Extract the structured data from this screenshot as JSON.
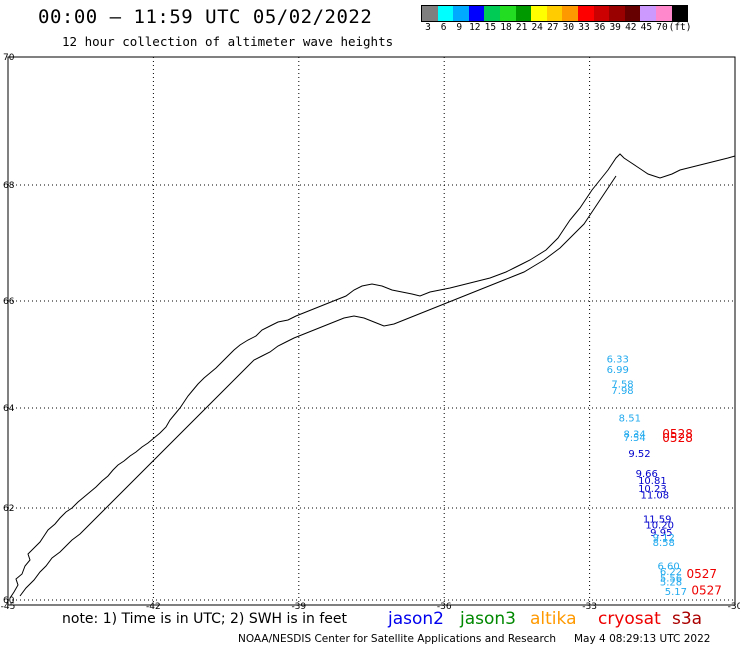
{
  "header": {
    "title": "00:00 – 11:59 UTC 05/02/2022",
    "subtitle": "12 hour collection of altimeter wave heights"
  },
  "colorbar": {
    "swatches": [
      "#7f7f7f",
      "#00ffff",
      "#00aaff",
      "#0000ff",
      "#00cc55",
      "#22dd22",
      "#009900",
      "#ffff00",
      "#ffcc00",
      "#ff9900",
      "#ff0000",
      "#cc0000",
      "#990000",
      "#660000",
      "#cc99ff",
      "#ff88cc",
      "#000000"
    ],
    "labels": [
      "3",
      "6",
      "9",
      "12",
      "15",
      "18",
      "21",
      "24",
      "27",
      "30",
      "33",
      "36",
      "39",
      "42",
      "45",
      "70",
      "(ft)"
    ]
  },
  "map": {
    "lon_ticks": [
      "-45",
      "-42",
      "-39",
      "-36",
      "-33",
      "-30"
    ],
    "lat_ticks": [
      "70",
      "68",
      "66",
      "64",
      "62",
      "60"
    ],
    "obs": [
      {
        "t": "6.33",
        "c": "#22aaee",
        "lon": -32.65,
        "lat": 64.85
      },
      {
        "t": "6.99",
        "c": "#22aaee",
        "lon": -32.65,
        "lat": 64.65
      },
      {
        "t": "7.58",
        "c": "#22aaee",
        "lon": -32.55,
        "lat": 64.38
      },
      {
        "t": "7.98",
        "c": "#22aaee",
        "lon": -32.55,
        "lat": 64.26
      },
      {
        "t": "8.51",
        "c": "#22aaee",
        "lon": -32.4,
        "lat": 63.73
      },
      {
        "t": "8.34",
        "c": "#22aaee",
        "lon": -32.3,
        "lat": 63.41
      },
      {
        "t": "7.54",
        "c": "#22aaee",
        "lon": -32.3,
        "lat": 63.34
      },
      {
        "t": "9.52",
        "c": "#0000cc",
        "lon": -32.2,
        "lat": 63.02
      },
      {
        "t": "9.66",
        "c": "#0000cc",
        "lon": -32.05,
        "lat": 62.62
      },
      {
        "t": "10.81",
        "c": "#0000cc",
        "lon": -32.0,
        "lat": 62.48
      },
      {
        "t": "10.23",
        "c": "#0000cc",
        "lon": -32.0,
        "lat": 62.32
      },
      {
        "t": "11.08",
        "c": "#0000cc",
        "lon": -31.95,
        "lat": 62.19
      },
      {
        "t": "11.59",
        "c": "#0000cc",
        "lon": -31.9,
        "lat": 61.68
      },
      {
        "t": "10.20",
        "c": "#0000cc",
        "lon": -31.85,
        "lat": 61.55
      },
      {
        "t": "9.95",
        "c": "#0000cc",
        "lon": -31.75,
        "lat": 61.39
      },
      {
        "t": "9.12",
        "c": "#22aaee",
        "lon": -31.7,
        "lat": 61.28
      },
      {
        "t": "8.58",
        "c": "#22aaee",
        "lon": -31.7,
        "lat": 61.17
      },
      {
        "t": "6.60",
        "c": "#22aaee",
        "lon": -31.6,
        "lat": 60.66
      },
      {
        "t": "6.22",
        "c": "#22aaee",
        "lon": -31.55,
        "lat": 60.54
      },
      {
        "t": "5.56",
        "c": "#22aaee",
        "lon": -31.55,
        "lat": 60.4
      },
      {
        "t": "5.28",
        "c": "#22aaee",
        "lon": -31.55,
        "lat": 60.32
      },
      {
        "t": "5.17",
        "c": "#22aaee",
        "lon": -31.45,
        "lat": 60.11
      }
    ],
    "times": [
      {
        "t": "0528",
        "c": "#ee0000",
        "lon": -31.5,
        "lat": 63.4
      },
      {
        "t": "0528",
        "c": "#ee0000",
        "lon": -31.5,
        "lat": 63.32
      },
      {
        "t": "0527",
        "c": "#ee0000",
        "lon": -31.0,
        "lat": 60.48
      },
      {
        "t": "0527",
        "c": "#ee0000",
        "lon": -30.9,
        "lat": 60.12
      }
    ]
  },
  "footer": {
    "note": "note: 1) Time is in UTC; 2) SWH is in feet",
    "satellites": [
      {
        "name": "jason2",
        "color": "#0000ee"
      },
      {
        "name": "jason3",
        "color": "#008800"
      },
      {
        "name": "altika",
        "color": "#ff9900"
      },
      {
        "name": "cryosat",
        "color": "#ee0000"
      },
      {
        "name": "s3a",
        "color": "#aa0000"
      }
    ],
    "credit": "NOAA/NESDIS Center for Satellite Applications and Research",
    "timestamp": "May  4 08:29:13 UTC 2022"
  }
}
